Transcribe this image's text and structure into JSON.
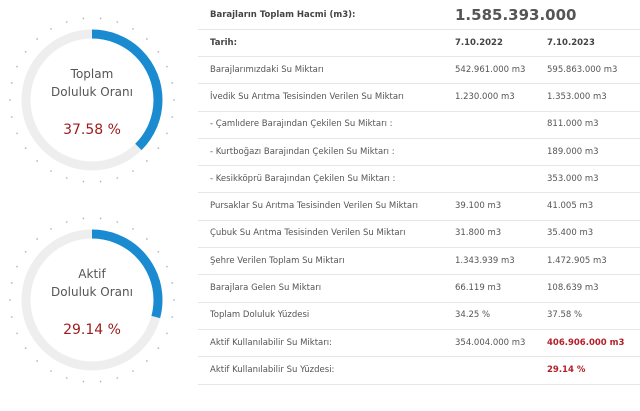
{
  "gauges": [
    {
      "line1": "Toplam",
      "line2": "Doluluk Oranı",
      "value": 37.58,
      "value_label": "37.58 %",
      "color": "#1a8bd0"
    },
    {
      "line1": "Aktif",
      "line2": "Doluluk Oranı",
      "value": 29.14,
      "value_label": "29.14 %",
      "color": "#1a8bd0"
    }
  ],
  "summary": {
    "label": "Barajların Toplam Hacmi (m3):",
    "value": "1.585.393.000"
  },
  "table": {
    "header": [
      "Tarih:",
      "7.10.2022",
      "7.10.2023"
    ],
    "rows": [
      {
        "cells": [
          "Barajlarımızdaki Su Miktarı",
          "542.961.000 m3",
          "595.863.000 m3"
        ]
      },
      {
        "cells": [
          "İvedik Su Arıtma Tesisinden Verilen Su Miktarı",
          "1.230.000 m3",
          "1.353.000 m3"
        ]
      },
      {
        "cells": [
          "- Çamlıdere Barajından Çekilen Su Miktarı :",
          null,
          "811.000 m3"
        ]
      },
      {
        "cells": [
          "- Kurtboğazı Barajından Çekilen Su Miktarı :",
          null,
          "189.000 m3"
        ]
      },
      {
        "cells": [
          "- Kesikköprü Barajından Çekilen Su Miktarı :",
          null,
          "353.000 m3"
        ]
      },
      {
        "cells": [
          "Pursaklar Su Arıtma Tesisinden Verilen Su Miktarı",
          "39.100 m3",
          "41.005 m3"
        ]
      },
      {
        "cells": [
          "Çubuk Su Arıtma Tesisinden Verilen Su Miktarı",
          "31.800 m3",
          "35.400 m3"
        ]
      },
      {
        "cells": [
          "Şehre Verilen Toplam Su Miktarı",
          "1.343.939 m3",
          "1.472.905 m3"
        ]
      },
      {
        "cells": [
          "Barajlara Gelen Su Miktarı",
          "66.119 m3",
          "108.639 m3"
        ]
      },
      {
        "cells": [
          "Toplam Doluluk Yüzdesi",
          "34.25 %",
          "37.58 %"
        ]
      },
      {
        "cells": [
          "Aktif Kullanılabilir Su Miktarı:",
          "354.004.000 m3",
          "406.906.000 m3"
        ],
        "emphasis": true
      },
      {
        "cells": [
          "Aktif Kullanılabilir Su Yüzdesi:",
          null,
          "29.14 %"
        ],
        "emphasis": true
      }
    ]
  }
}
